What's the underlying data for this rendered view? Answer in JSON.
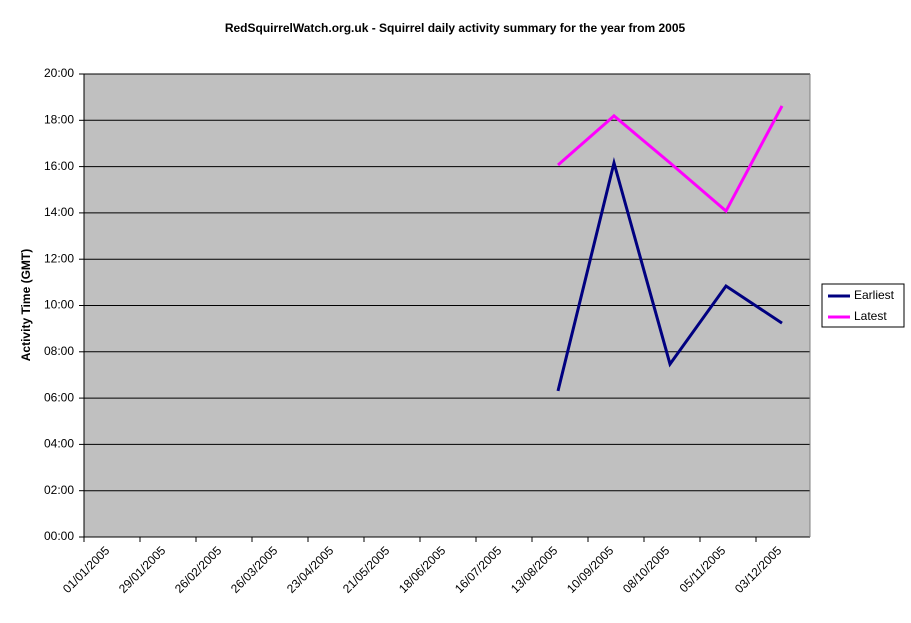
{
  "chart_data": {
    "type": "line",
    "title": "RedSquirrelWatch.org.uk - Squirrel daily activity summary for the year from 2005",
    "y_label": "Activity Time (GMT)",
    "x": [
      "2005-08-26",
      "2005-09-23",
      "2005-10-21",
      "2005-11-18",
      "2005-12-16"
    ],
    "series": [
      {
        "name": "Earliest",
        "color": "#000080",
        "values": [
          6.31,
          16.16,
          7.47,
          10.84,
          9.24
        ]
      },
      {
        "name": "Latest",
        "color": "#ff00ff",
        "values": [
          16.07,
          18.19,
          16.16,
          14.08,
          18.62
        ]
      }
    ],
    "xlim": [
      "2005-01-01",
      "2005-12-30"
    ],
    "xticks": [
      {
        "value": "2005-01-01",
        "label": "01/01/2005"
      },
      {
        "value": "2005-01-29",
        "label": "29/01/2005"
      },
      {
        "value": "2005-02-26",
        "label": "26/02/2005"
      },
      {
        "value": "2005-03-26",
        "label": "26/03/2005"
      },
      {
        "value": "2005-04-23",
        "label": "23/04/2005"
      },
      {
        "value": "2005-05-21",
        "label": "21/05/2005"
      },
      {
        "value": "2005-06-18",
        "label": "18/06/2005"
      },
      {
        "value": "2005-07-16",
        "label": "16/07/2005"
      },
      {
        "value": "2005-08-13",
        "label": "13/08/2005"
      },
      {
        "value": "2005-09-10",
        "label": "10/09/2005"
      },
      {
        "value": "2005-10-08",
        "label": "08/10/2005"
      },
      {
        "value": "2005-11-05",
        "label": "05/11/2005"
      },
      {
        "value": "2005-12-03",
        "label": "03/12/2005"
      }
    ],
    "ylim": [
      0,
      20
    ],
    "yticks": [
      {
        "value": 0,
        "label": "00:00"
      },
      {
        "value": 2,
        "label": "02:00"
      },
      {
        "value": 4,
        "label": "04:00"
      },
      {
        "value": 6,
        "label": "06:00"
      },
      {
        "value": 8,
        "label": "08:00"
      },
      {
        "value": 10,
        "label": "10:00"
      },
      {
        "value": 12,
        "label": "12:00"
      },
      {
        "value": 14,
        "label": "14:00"
      },
      {
        "value": 16,
        "label": "16:00"
      },
      {
        "value": 18,
        "label": "18:00"
      },
      {
        "value": 20,
        "label": "20:00"
      }
    ],
    "grid": true,
    "legend": "right",
    "plot_background": "#c0c0c0"
  }
}
